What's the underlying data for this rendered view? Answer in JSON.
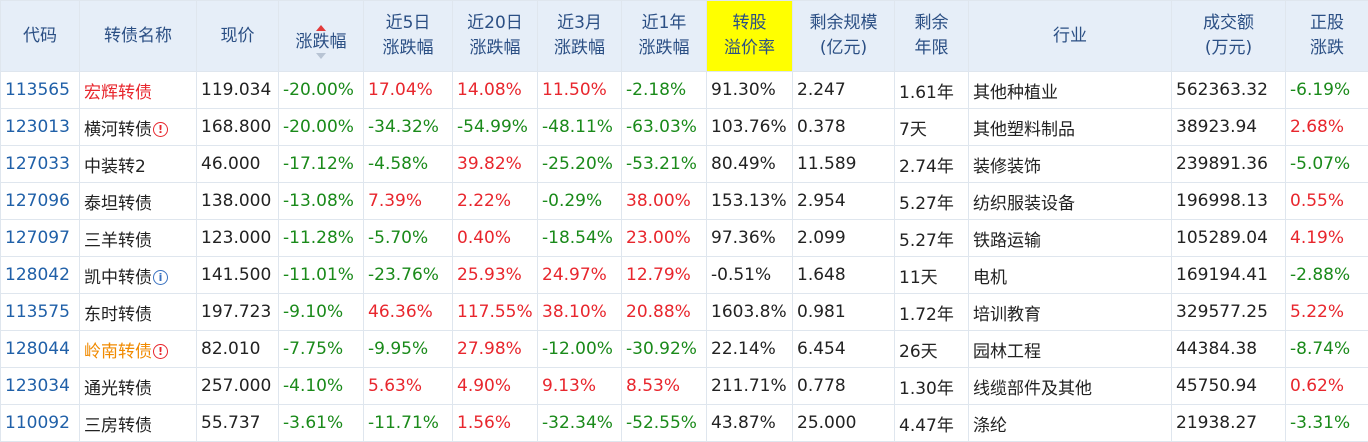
{
  "headers": {
    "code": "代码",
    "name": "转债名称",
    "price": "现价",
    "change": "涨跌幅",
    "chg5d_1": "近5日",
    "chg5d_2": "涨跌幅",
    "chg20d_1": "近20日",
    "chg20d_2": "涨跌幅",
    "chg3m_1": "近3月",
    "chg3m_2": "涨跌幅",
    "chg1y_1": "近1年",
    "chg1y_2": "涨跌幅",
    "premium_1": "转股",
    "premium_2": "溢价率",
    "size_1": "剩余规模",
    "size_2": "(亿元)",
    "term_1": "剩余",
    "term_2": "年限",
    "industry": "行业",
    "volume_1": "成交额",
    "volume_2": "(万元)",
    "stock_1": "正股",
    "stock_2": "涨跌"
  },
  "colors": {
    "header_bg": "#e6eef8",
    "highlight": "#ffff00",
    "up": "#e8262d",
    "down": "#1a8a1a",
    "code": "#2060a8",
    "name_orange": "#f08a00"
  },
  "rows": [
    {
      "code": "113565",
      "name": "宏辉转债",
      "name_color": "red",
      "icon": "",
      "price": "119.034",
      "change": "-20.00%",
      "chg5d": "17.04%",
      "chg20d": "14.08%",
      "chg3m": "11.50%",
      "chg1y": "-2.18%",
      "premium": "91.30%",
      "size": "2.247",
      "term": "1.61年",
      "industry": "其他种植业",
      "volume": "562363.32",
      "stock": "-6.19%"
    },
    {
      "code": "123013",
      "name": "横河转债",
      "name_color": "",
      "icon": "warn",
      "price": "168.800",
      "change": "-20.00%",
      "chg5d": "-34.32%",
      "chg20d": "-54.99%",
      "chg3m": "-48.11%",
      "chg1y": "-63.03%",
      "premium": "103.76%",
      "size": "0.378",
      "term": "7天",
      "industry": "其他塑料制品",
      "volume": "38923.94",
      "stock": "2.68%"
    },
    {
      "code": "127033",
      "name": "中装转2",
      "name_color": "",
      "icon": "",
      "price": "46.000",
      "change": "-17.12%",
      "chg5d": "-4.58%",
      "chg20d": "39.82%",
      "chg3m": "-25.20%",
      "chg1y": "-53.21%",
      "premium": "80.49%",
      "size": "11.589",
      "term": "2.74年",
      "industry": "装修装饰",
      "volume": "239891.36",
      "stock": "-5.07%"
    },
    {
      "code": "127096",
      "name": "泰坦转债",
      "name_color": "",
      "icon": "",
      "price": "138.000",
      "change": "-13.08%",
      "chg5d": "7.39%",
      "chg20d": "2.22%",
      "chg3m": "-0.29%",
      "chg1y": "38.00%",
      "premium": "153.13%",
      "size": "2.954",
      "term": "5.27年",
      "industry": "纺织服装设备",
      "volume": "196998.13",
      "stock": "0.55%"
    },
    {
      "code": "127097",
      "name": "三羊转债",
      "name_color": "",
      "icon": "",
      "price": "123.000",
      "change": "-11.28%",
      "chg5d": "-5.70%",
      "chg20d": "0.40%",
      "chg3m": "-18.54%",
      "chg1y": "23.00%",
      "premium": "97.36%",
      "size": "2.099",
      "term": "5.27年",
      "industry": "铁路运输",
      "volume": "105289.04",
      "stock": "4.19%"
    },
    {
      "code": "128042",
      "name": "凯中转债",
      "name_color": "",
      "icon": "info",
      "price": "141.500",
      "change": "-11.01%",
      "chg5d": "-23.76%",
      "chg20d": "25.93%",
      "chg3m": "24.97%",
      "chg1y": "12.79%",
      "premium": "-0.51%",
      "size": "1.648",
      "term": "11天",
      "industry": "电机",
      "volume": "169194.41",
      "stock": "-2.88%"
    },
    {
      "code": "113575",
      "name": "东时转债",
      "name_color": "",
      "icon": "",
      "price": "197.723",
      "change": "-9.10%",
      "chg5d": "46.36%",
      "chg20d": "117.55%",
      "chg3m": "38.10%",
      "chg1y": "20.88%",
      "premium": "1603.8%",
      "size": "0.981",
      "term": "1.72年",
      "industry": "培训教育",
      "volume": "329577.25",
      "stock": "5.22%"
    },
    {
      "code": "128044",
      "name": "岭南转债",
      "name_color": "orange",
      "icon": "warn",
      "price": "82.010",
      "change": "-7.75%",
      "chg5d": "-9.95%",
      "chg20d": "27.98%",
      "chg3m": "-12.00%",
      "chg1y": "-30.92%",
      "premium": "22.14%",
      "size": "6.454",
      "term": "26天",
      "industry": "园林工程",
      "volume": "44384.38",
      "stock": "-8.74%"
    },
    {
      "code": "123034",
      "name": "通光转债",
      "name_color": "",
      "icon": "",
      "price": "257.000",
      "change": "-4.10%",
      "chg5d": "5.63%",
      "chg20d": "4.90%",
      "chg3m": "9.13%",
      "chg1y": "8.53%",
      "premium": "211.71%",
      "size": "0.778",
      "term": "1.30年",
      "industry": "线缆部件及其他",
      "volume": "45750.94",
      "stock": "0.62%"
    },
    {
      "code": "110092",
      "name": "三房转债",
      "name_color": "",
      "icon": "",
      "price": "55.737",
      "change": "-3.61%",
      "chg5d": "-11.71%",
      "chg20d": "1.56%",
      "chg3m": "-32.34%",
      "chg1y": "-52.55%",
      "premium": "43.87%",
      "size": "25.000",
      "term": "4.47年",
      "industry": "涤纶",
      "volume": "21938.27",
      "stock": "-3.31%"
    }
  ]
}
